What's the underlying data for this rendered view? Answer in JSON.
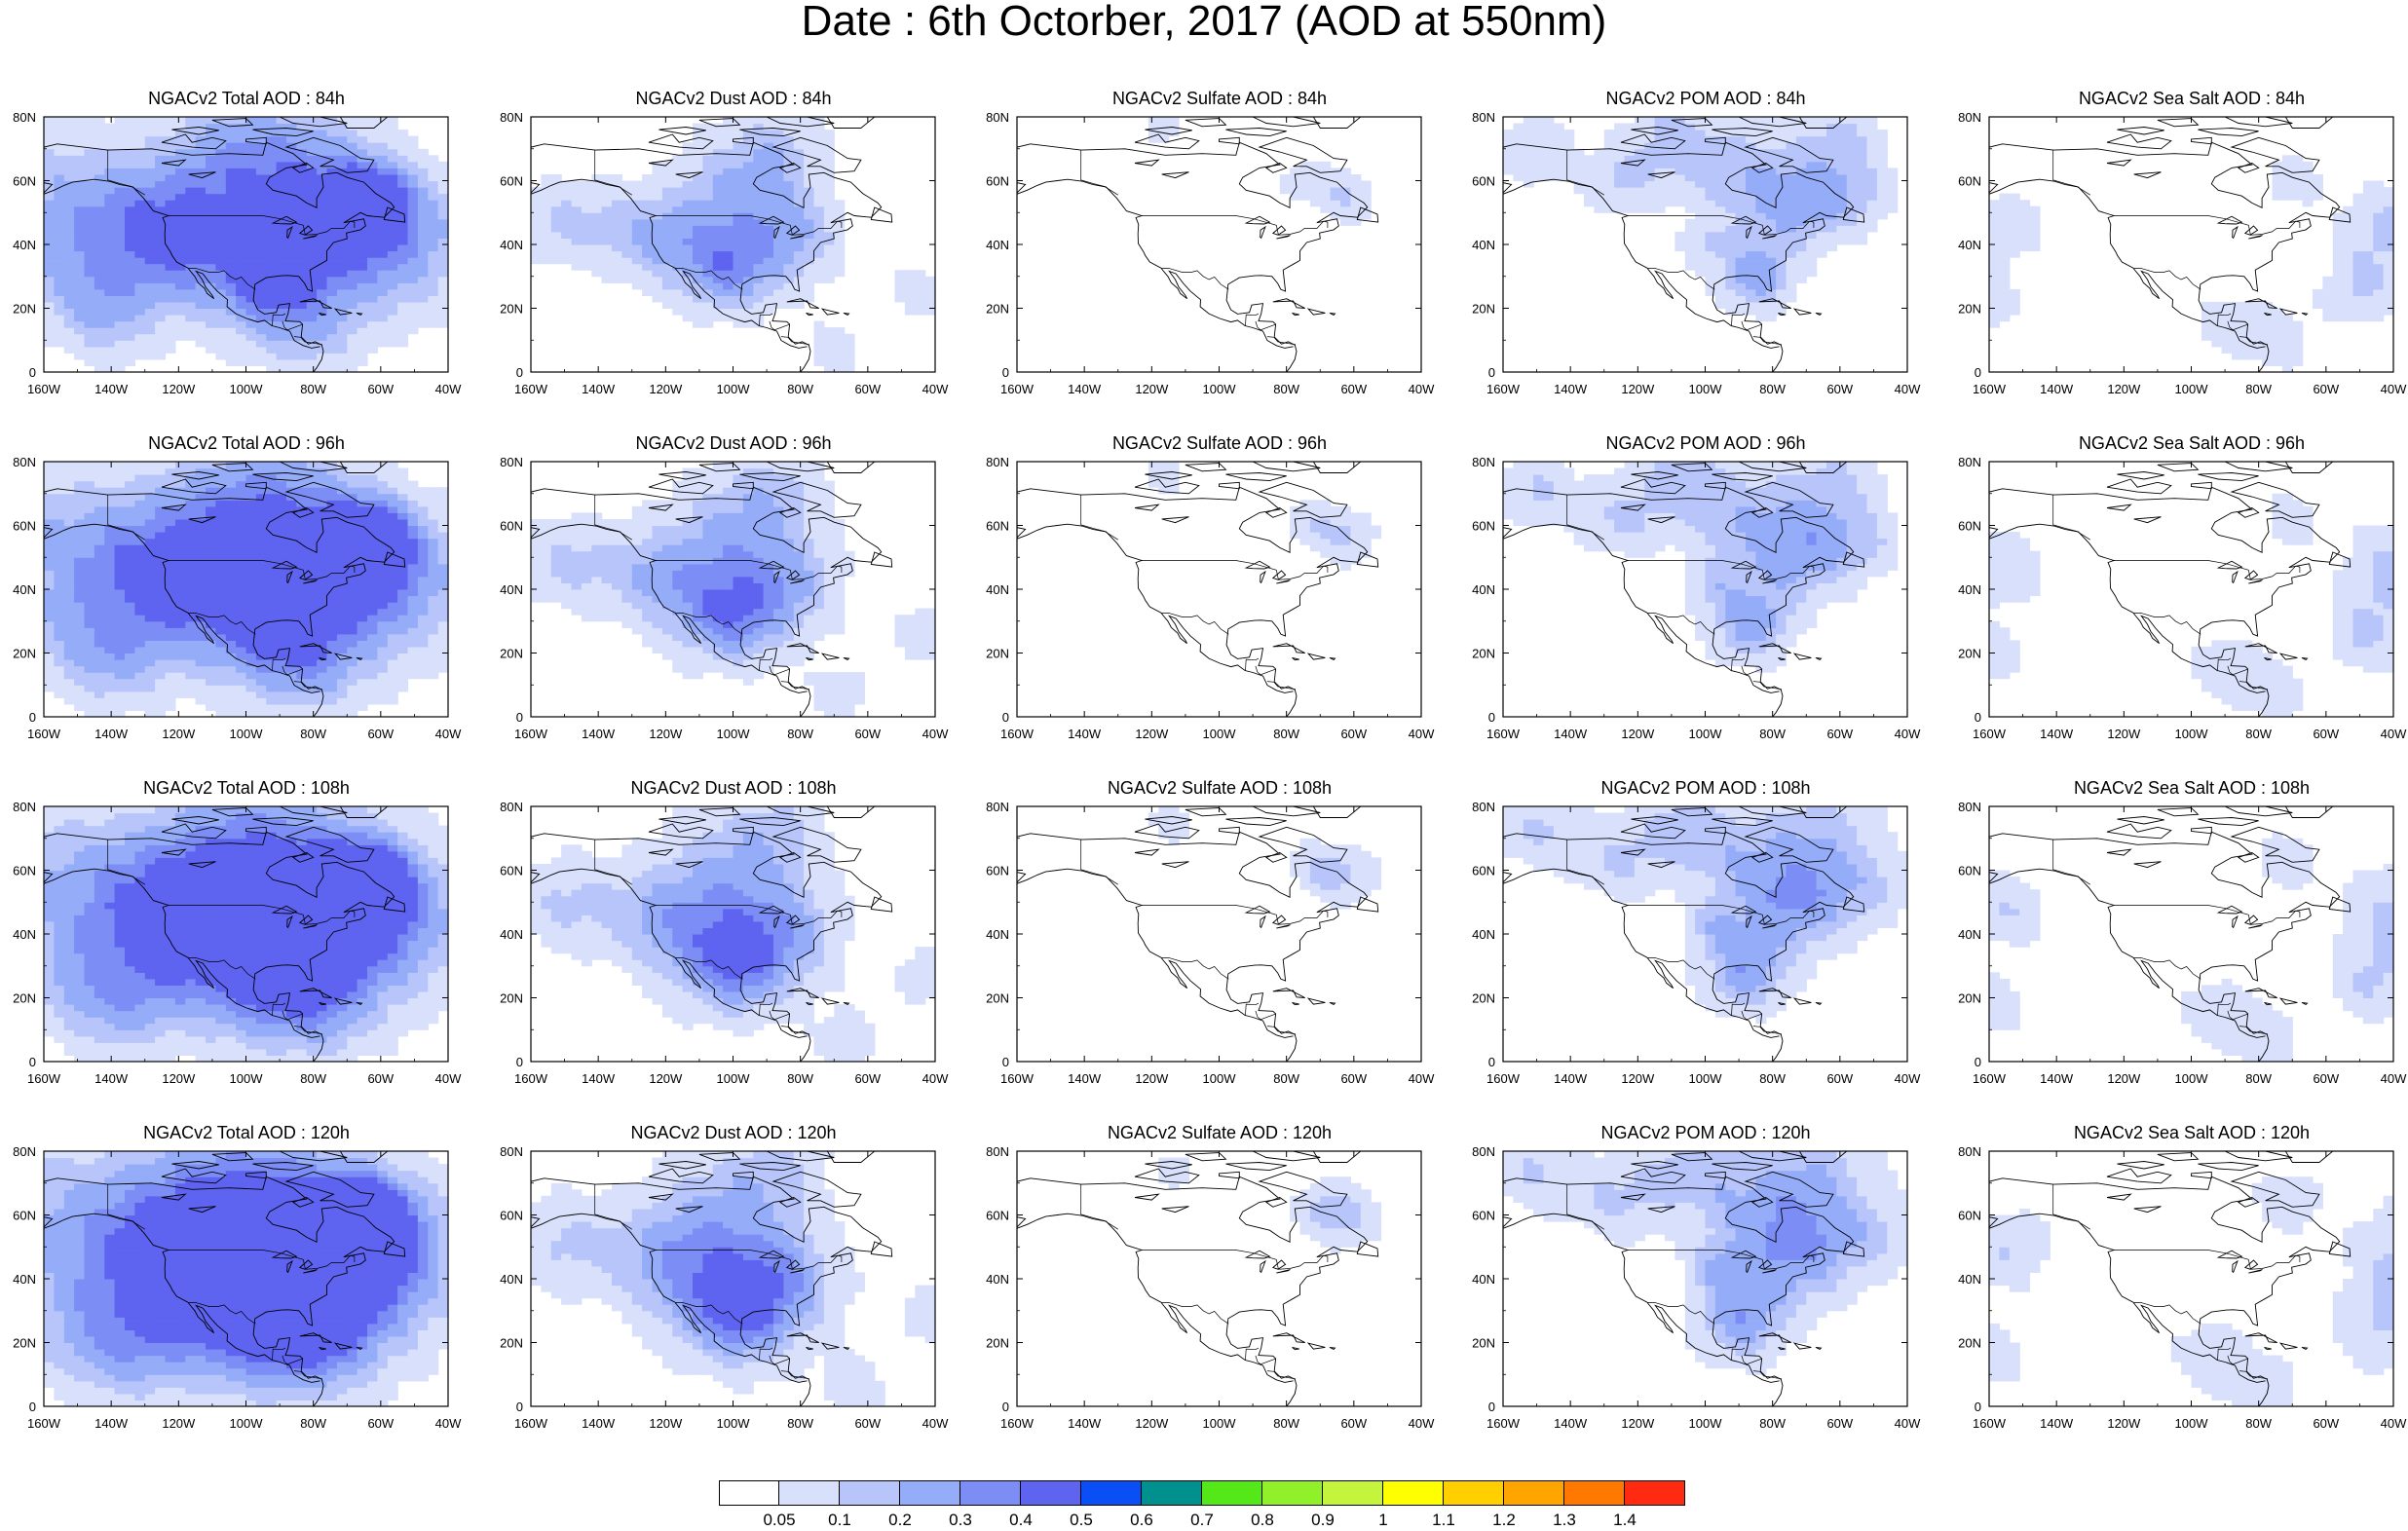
{
  "title": "Date : 6th Octorber, 2017 (AOD at 550nm)",
  "lat_ticks": [
    "80N",
    "60N",
    "40N",
    "20N",
    "0"
  ],
  "lon_ticks": [
    "160W",
    "140W",
    "120W",
    "100W",
    "80W",
    "60W",
    "40W"
  ],
  "panels": [
    {
      "title": "NGACv2 Total AOD : 84h",
      "species": "total",
      "hour": 84
    },
    {
      "title": "NGACv2 Dust AOD : 84h",
      "species": "dust",
      "hour": 84
    },
    {
      "title": "NGACv2 Sulfate AOD : 84h",
      "species": "sulfate",
      "hour": 84
    },
    {
      "title": "NGACv2 POM AOD : 84h",
      "species": "pom",
      "hour": 84
    },
    {
      "title": "NGACv2 Sea Salt AOD : 84h",
      "species": "seasalt",
      "hour": 84
    },
    {
      "title": "NGACv2 Total AOD : 96h",
      "species": "total",
      "hour": 96
    },
    {
      "title": "NGACv2 Dust AOD : 96h",
      "species": "dust",
      "hour": 96
    },
    {
      "title": "NGACv2 Sulfate AOD : 96h",
      "species": "sulfate",
      "hour": 96
    },
    {
      "title": "NGACv2 POM AOD : 96h",
      "species": "pom",
      "hour": 96
    },
    {
      "title": "NGACv2 Sea Salt AOD : 96h",
      "species": "seasalt",
      "hour": 96
    },
    {
      "title": "NGACv2 Total AOD : 108h",
      "species": "total",
      "hour": 108
    },
    {
      "title": "NGACv2 Dust AOD : 108h",
      "species": "dust",
      "hour": 108
    },
    {
      "title": "NGACv2 Sulfate AOD : 108h",
      "species": "sulfate",
      "hour": 108
    },
    {
      "title": "NGACv2 POM AOD : 108h",
      "species": "pom",
      "hour": 108
    },
    {
      "title": "NGACv2 Sea Salt AOD : 108h",
      "species": "seasalt",
      "hour": 108
    },
    {
      "title": "NGACv2 Total AOD : 120h",
      "species": "total",
      "hour": 120
    },
    {
      "title": "NGACv2 Dust AOD : 120h",
      "species": "dust",
      "hour": 120
    },
    {
      "title": "NGACv2 Sulfate AOD : 120h",
      "species": "sulfate",
      "hour": 120
    },
    {
      "title": "NGACv2 POM AOD : 120h",
      "species": "pom",
      "hour": 120
    },
    {
      "title": "NGACv2 Sea Salt  AOD : 120h",
      "species": "seasalt",
      "hour": 120
    }
  ],
  "colorbar": {
    "colors": [
      "#ffffff",
      "#d8e0fb",
      "#b7c5fa",
      "#95acf8",
      "#7c8ef5",
      "#5e63f0",
      "#0a4ff5",
      "#00908e",
      "#54e818",
      "#90f02a",
      "#c4f43c",
      "#ffff00",
      "#ffcf00",
      "#ffa500",
      "#ff7800",
      "#ff2a10"
    ],
    "labels": [
      "0.05",
      "0.1",
      "0.2",
      "0.3",
      "0.4",
      "0.5",
      "0.6",
      "0.7",
      "0.8",
      "0.9",
      "1",
      "1.1",
      "1.2",
      "1.3",
      "1.4"
    ]
  }
}
